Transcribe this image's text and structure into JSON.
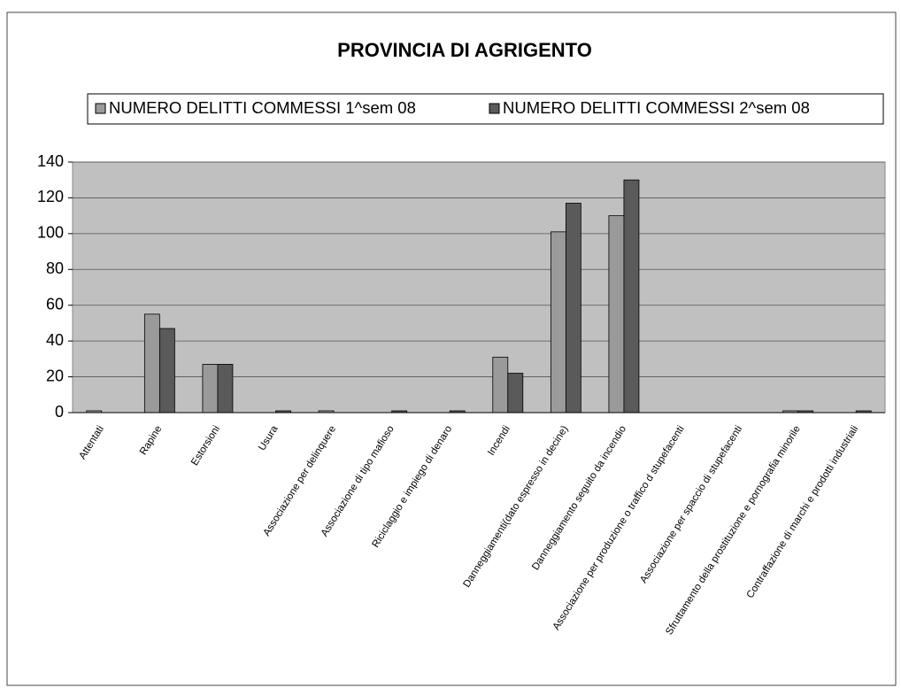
{
  "chart_data": {
    "type": "bar",
    "title": "PROVINCIA DI AGRIGENTO",
    "categories": [
      "Attentati",
      "Rapine",
      "Estorsioni",
      "Usura",
      "Associazione per delinquere",
      "Associazione di tipo mafioso",
      "Riciclaggio e impiego di denaro",
      "Incendi",
      "Danneggiamenti(dato espresso in decine)",
      "Danneggiamento seguito da incendio",
      "Associazione per produzione o traffico d stupefacenti",
      "Associazione per spaccio di stupefacenti",
      "Sfruttamento della prostituzione e pornografia minorile",
      "Contraffazione di marchi e prodotti industriali"
    ],
    "series": [
      {
        "name": "NUMERO DELITTI COMMESSI 1^sem  08",
        "color": "#9a9a9a",
        "values": [
          1,
          55,
          27,
          0,
          1,
          0,
          0,
          31,
          101,
          110,
          0,
          0,
          1,
          0
        ]
      },
      {
        "name": "NUMERO DELITTI COMMESSI 2^sem  08",
        "color": "#5a5a5a",
        "values": [
          0,
          47,
          27,
          1,
          0,
          1,
          1,
          22,
          117,
          130,
          0,
          0,
          1,
          1
        ]
      }
    ],
    "ylim": [
      0,
      140
    ],
    "yticks": [
      0,
      20,
      40,
      60,
      80,
      100,
      120,
      140
    ],
    "grid": true,
    "legend": "top"
  }
}
